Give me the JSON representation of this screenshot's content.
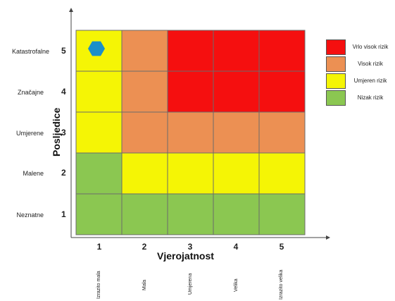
{
  "chart_data": {
    "type": "heatmap",
    "title": "",
    "xlabel": "Vjerojatnost",
    "ylabel": "Posljedice",
    "x_ticks": [
      "1",
      "2",
      "3",
      "4",
      "5"
    ],
    "x_categories": [
      "Izrazito mala",
      "Mala",
      "Umjerena",
      "Velika",
      "Izrazito velika"
    ],
    "y_ticks": [
      "5",
      "4",
      "3",
      "2",
      "1"
    ],
    "y_categories": [
      "Katastrofalne",
      "Značajne",
      "Umjerene",
      "Malene",
      "Neznatne"
    ],
    "grid": [
      [
        "yellow",
        "orange",
        "red",
        "red",
        "red"
      ],
      [
        "yellow",
        "orange",
        "red",
        "red",
        "red"
      ],
      [
        "yellow",
        "orange",
        "orange",
        "orange",
        "orange"
      ],
      [
        "green",
        "yellow",
        "yellow",
        "yellow",
        "yellow"
      ],
      [
        "green",
        "green",
        "green",
        "green",
        "green"
      ]
    ],
    "marker": {
      "shape": "hexagon",
      "color": "#1b8fc9",
      "x": 1,
      "y": 5
    },
    "legend": {
      "placement": "right",
      "entries": [
        {
          "label": "Vrlo visok rizik",
          "color": "#f50f0f",
          "level": "red"
        },
        {
          "label": "Visok rizik",
          "color": "#ec9053",
          "level": "orange"
        },
        {
          "label": "Umjeren rizik",
          "color": "#f5f505",
          "level": "yellow"
        },
        {
          "label": "Nizak rizik",
          "color": "#8bc751",
          "level": "green"
        }
      ]
    }
  },
  "colors": {
    "red": "#f50f0f",
    "orange": "#ec9053",
    "yellow": "#f5f505",
    "green": "#8bc751",
    "cell_border": "#6b6b6b"
  }
}
